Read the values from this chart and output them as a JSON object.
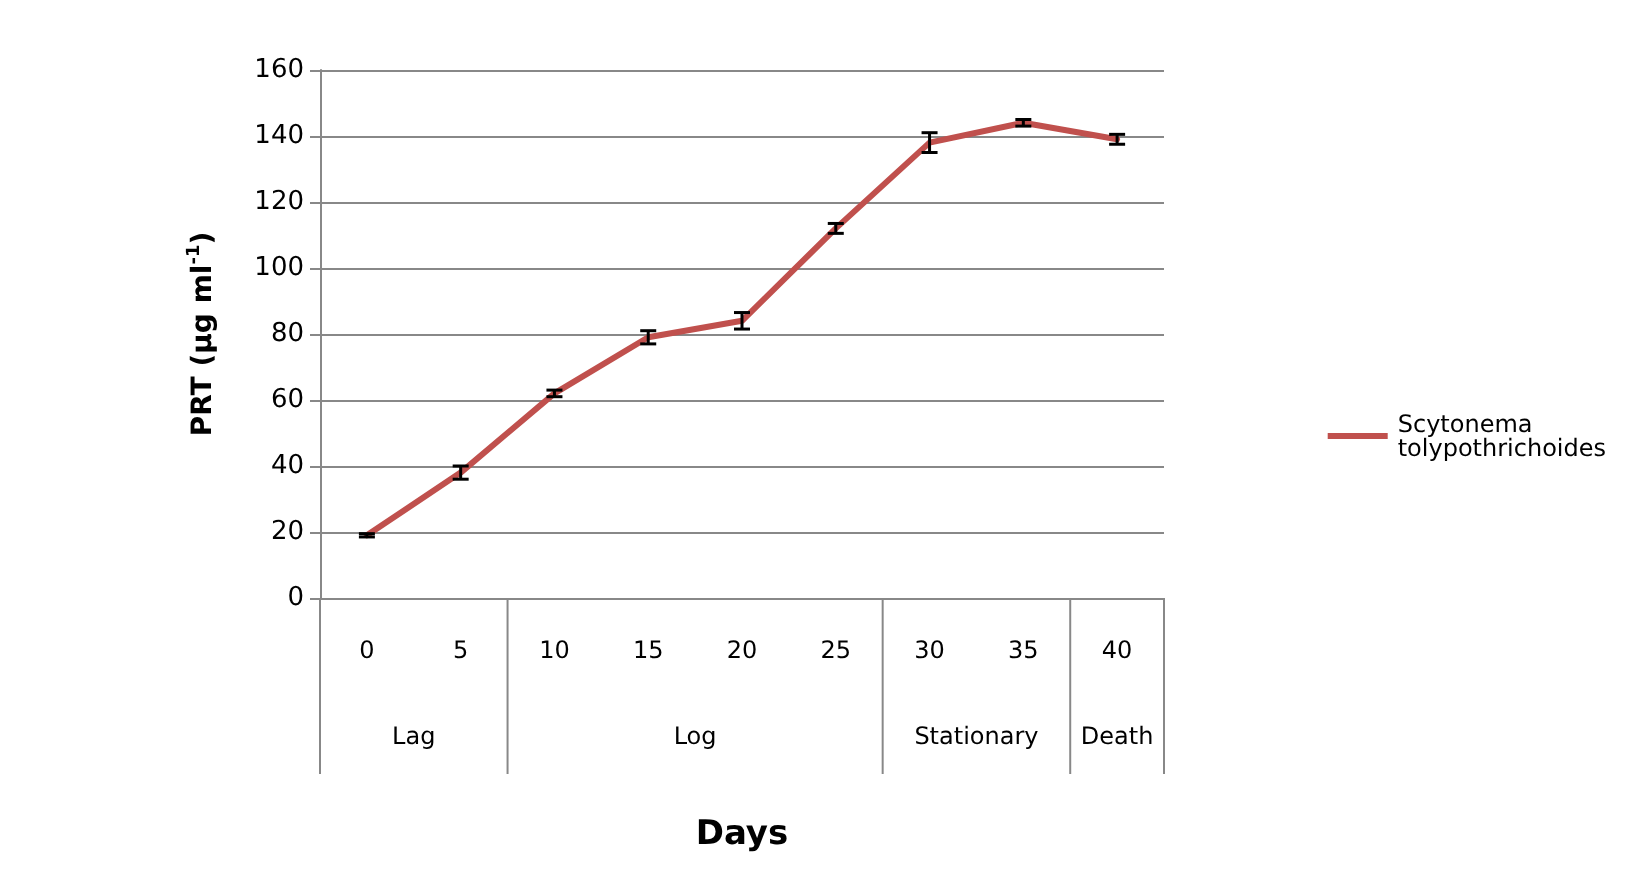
{
  "chart_data": {
    "type": "line",
    "xlabel": "Days",
    "ylabel": "PRT (µg ml$^{-1}$)",
    "categories": [
      "0",
      "5",
      "10",
      "15",
      "20",
      "25",
      "30",
      "35",
      "40"
    ],
    "series": [
      {
        "name": "Scytonema tolypothrichoides",
        "color": "#c0504d",
        "values": [
          19,
          38,
          62,
          79,
          84,
          112,
          138,
          144,
          139
        ],
        "errors": [
          0.5,
          2,
          1,
          2,
          2.5,
          1.5,
          3,
          1,
          1.5
        ]
      }
    ],
    "ylim": [
      0,
      160
    ],
    "yticks": [
      0,
      20,
      40,
      60,
      80,
      100,
      120,
      140,
      160
    ],
    "grid": "y",
    "legend": "right",
    "marker": "none",
    "line_style": "solid",
    "annotations": [
      "Lag",
      "Log",
      "Stationary",
      "Death"
    ]
  }
}
